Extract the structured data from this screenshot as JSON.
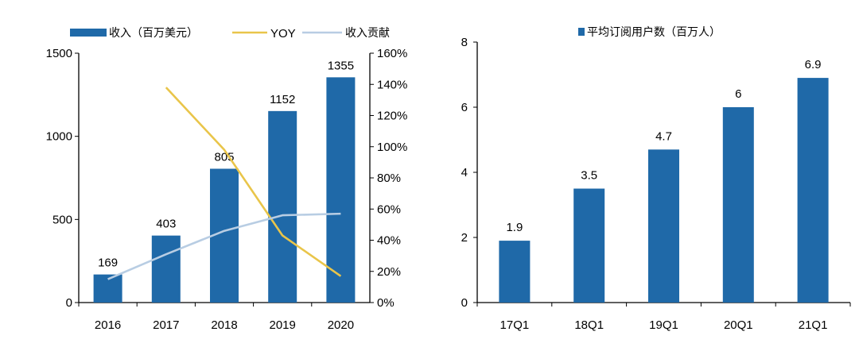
{
  "colors": {
    "bar": "#1f69a8",
    "yoy_line": "#e9c54a",
    "contribution_line": "#b8cde3",
    "axis": "#000000",
    "background": "#ffffff"
  },
  "chart_data": [
    {
      "type": "bar",
      "categories": [
        "2016",
        "2017",
        "2018",
        "2019",
        "2020"
      ],
      "series": [
        {
          "name": "收入（百万美元）",
          "type": "bar",
          "axis": "left",
          "values": [
            169,
            403,
            805,
            1152,
            1355
          ],
          "labels": [
            "169",
            "403",
            "805",
            "1152",
            "1355"
          ]
        },
        {
          "name": "YOY",
          "type": "line",
          "axis": "right",
          "values": [
            null,
            138,
            98,
            43,
            17
          ]
        },
        {
          "name": "收入贡献",
          "type": "line",
          "axis": "right",
          "values": [
            15,
            31,
            46,
            56,
            57
          ]
        }
      ],
      "ylim": [
        0,
        1500
      ],
      "yticks": [
        "0",
        "500",
        "1000",
        "1500"
      ],
      "y2lim": [
        0,
        160
      ],
      "y2ticks": [
        "0%",
        "20%",
        "40%",
        "60%",
        "80%",
        "100%",
        "120%",
        "140%",
        "160%"
      ],
      "legend_position": "top",
      "grid": false
    },
    {
      "type": "bar",
      "categories": [
        "17Q1",
        "18Q1",
        "19Q1",
        "20Q1",
        "21Q1"
      ],
      "series": [
        {
          "name": "平均订阅用户数（百万人）",
          "type": "bar",
          "axis": "left",
          "values": [
            1.9,
            3.5,
            4.7,
            6,
            6.9
          ],
          "labels": [
            "1.9",
            "3.5",
            "4.7",
            "6",
            "6.9"
          ]
        }
      ],
      "ylim": [
        0,
        8
      ],
      "yticks": [
        "0",
        "2",
        "4",
        "6",
        "8"
      ],
      "legend_position": "top",
      "grid": false
    }
  ]
}
